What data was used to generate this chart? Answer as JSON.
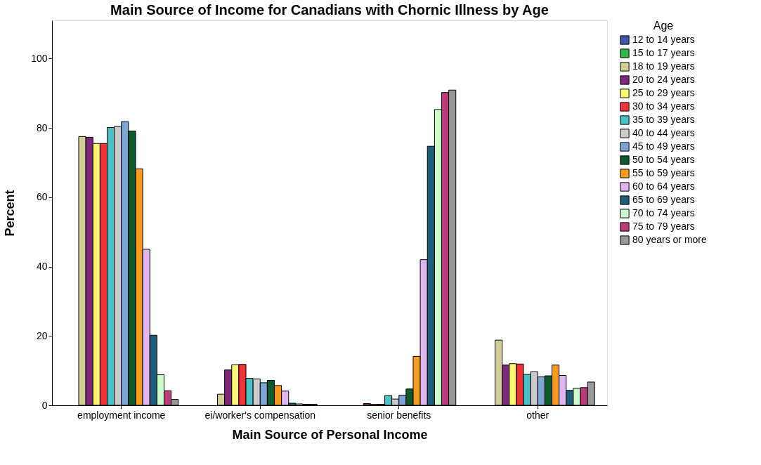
{
  "chart_data": {
    "type": "bar",
    "title": "Main Source of Income for Canadians with Chornic Illness by Age",
    "xlabel": "Main Source of Personal Income",
    "ylabel": "Percent",
    "legend_title": "Age",
    "categories": [
      "employment income",
      "ei/worker's compensation",
      "senior benefits",
      "other"
    ],
    "series": [
      {
        "name": "12 to 14 years",
        "color": "#3e58ac",
        "values": [
          null,
          null,
          null,
          null
        ]
      },
      {
        "name": "15 to 17 years",
        "color": "#2eb848",
        "values": [
          null,
          null,
          null,
          null
        ]
      },
      {
        "name": "18 to 19 years",
        "color": "#d3ce97",
        "values": [
          77.5,
          3.2,
          null,
          18.8
        ]
      },
      {
        "name": "20 to 24 years",
        "color": "#7c287d",
        "values": [
          77.3,
          10.2,
          0.5,
          11.6
        ]
      },
      {
        "name": "25 to 29 years",
        "color": "#fbf873",
        "values": [
          75.5,
          11.7,
          0.3,
          12.0
        ]
      },
      {
        "name": "30 to 34 years",
        "color": "#ef3338",
        "values": [
          75.5,
          11.8,
          0.3,
          11.9
        ]
      },
      {
        "name": "35 to 39 years",
        "color": "#48c2c5",
        "values": [
          80.1,
          7.8,
          2.8,
          8.9
        ]
      },
      {
        "name": "40 to 44 years",
        "color": "#cccccc",
        "values": [
          80.4,
          7.6,
          1.8,
          9.7
        ]
      },
      {
        "name": "45 to 49 years",
        "color": "#7ba6d5",
        "values": [
          81.8,
          6.5,
          2.9,
          8.2
        ]
      },
      {
        "name": "50 to 54 years",
        "color": "#0d5b2c",
        "values": [
          79.1,
          7.2,
          4.7,
          8.5
        ]
      },
      {
        "name": "55 to 59 years",
        "color": "#f89a1d",
        "values": [
          68.2,
          5.7,
          14.1,
          11.6
        ]
      },
      {
        "name": "60 to 64 years",
        "color": "#e0b6f0",
        "values": [
          45.0,
          4.1,
          42.0,
          8.6
        ]
      },
      {
        "name": "65 to 69 years",
        "color": "#1e5e79",
        "values": [
          20.2,
          0.6,
          74.7,
          4.3
        ]
      },
      {
        "name": "70 to 74 years",
        "color": "#ccfecc",
        "values": [
          8.8,
          0.4,
          85.3,
          4.9
        ]
      },
      {
        "name": "75 to 79 years",
        "color": "#bd3a7b",
        "values": [
          4.2,
          0.3,
          90.2,
          5.1
        ]
      },
      {
        "name": "80 years or more",
        "color": "#999999",
        "values": [
          1.7,
          0.3,
          90.9,
          6.7
        ]
      }
    ],
    "ylim": [
      0,
      111
    ],
    "yticks": [
      0,
      20,
      40,
      60,
      80,
      100
    ],
    "grid": false,
    "legend": "top right"
  }
}
